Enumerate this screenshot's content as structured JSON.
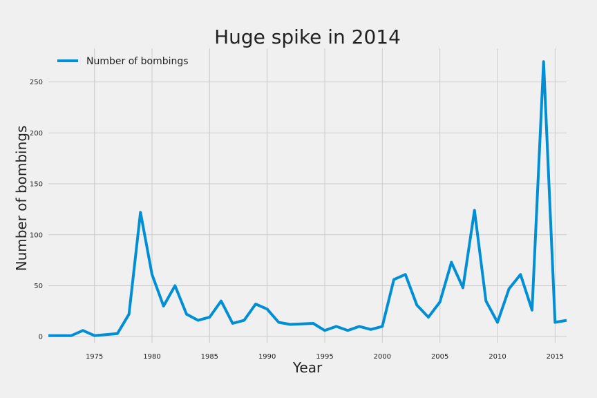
{
  "chart_data": {
    "type": "line",
    "title": "Huge spike in 2014",
    "xlabel": "Year",
    "ylabel": "Number of bombings",
    "xlim": [
      1971,
      2016
    ],
    "ylim": [
      -6,
      283
    ],
    "xticks": [
      1975,
      1980,
      1985,
      1990,
      1995,
      2000,
      2005,
      2010,
      2015
    ],
    "yticks": [
      0,
      50,
      100,
      150,
      200,
      250
    ],
    "grid": true,
    "legend_position": "top-left",
    "series": [
      {
        "name": "Number of bombings",
        "color": "#008fd5",
        "x": [
          1971,
          1972,
          1973,
          1974,
          1975,
          1976,
          1977,
          1978,
          1979,
          1980,
          1981,
          1982,
          1983,
          1984,
          1985,
          1986,
          1987,
          1988,
          1989,
          1990,
          1991,
          1992,
          1993,
          1994,
          1995,
          1996,
          1997,
          1998,
          1999,
          2000,
          2001,
          2002,
          2003,
          2004,
          2005,
          2006,
          2007,
          2008,
          2009,
          2010,
          2011,
          2012,
          2013,
          2014,
          2015,
          2016
        ],
        "values": [
          1,
          1,
          1,
          6,
          1,
          2,
          3,
          22,
          122,
          61,
          30,
          50,
          22,
          16,
          19,
          35,
          13,
          16,
          32,
          27,
          14,
          12,
          12.5,
          13,
          6,
          10,
          6,
          10,
          7,
          10,
          56,
          61,
          31,
          19,
          34,
          73,
          48,
          124,
          35,
          14,
          47,
          61,
          26,
          270,
          14,
          16
        ]
      }
    ]
  }
}
